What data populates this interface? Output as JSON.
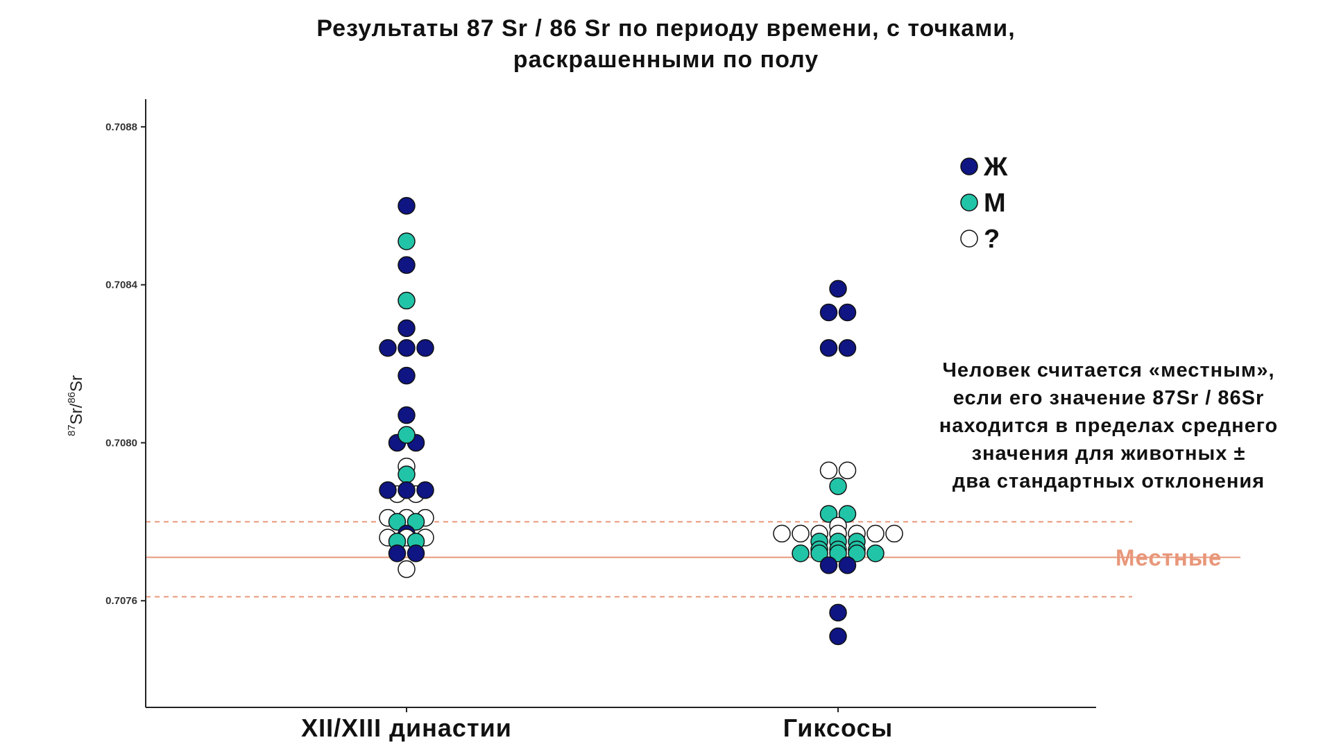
{
  "chart_data": {
    "type": "scatter",
    "title_lines": [
      "Результаты 87 Sr / 86 Sr по периоду времени, с точками,",
      "раскрашенными по полу"
    ],
    "ylabel": {
      "sup1": "87",
      "base1": "Sr/",
      "sup2": "86",
      "base2": "Sr"
    },
    "ylim": [
      0.70733,
      0.70887
    ],
    "yticks": [
      0.7076,
      0.708,
      0.7084,
      0.7088
    ],
    "ytick_labels": [
      "0.7076",
      "0.7080",
      "0.7084",
      "0.7088"
    ],
    "categories": [
      "XII/XIII династии",
      "Гиксосы"
    ],
    "colors": {
      "F": "#0f1582",
      "M": "#22c4a8",
      "U": "#ffffff",
      "local": "#e8977a"
    },
    "legend": [
      {
        "key": "F",
        "label": "Ж"
      },
      {
        "key": "M",
        "label": "М"
      },
      {
        "key": "U",
        "label": "?"
      }
    ],
    "local_range": {
      "mean": 70771,
      "lower": 70761,
      "upper": 70780,
      "scale": 100000,
      "label": "Местные"
    },
    "note_lines": [
      "Человек считается «местным»,",
      "если его значение 87Sr / 86Sr",
      "находится в пределах среднего",
      "значения для животных ±",
      "два стандартных отклонения"
    ],
    "series": [
      {
        "category": "XII/XIII династии",
        "points": [
          {
            "dx": 0,
            "y": 0.7086,
            "sex": "F"
          },
          {
            "dx": 0,
            "y": 0.70851,
            "sex": "M"
          },
          {
            "dx": 0,
            "y": 0.70845,
            "sex": "F"
          },
          {
            "dx": 0,
            "y": 0.70836,
            "sex": "M"
          },
          {
            "dx": 0,
            "y": 0.70829,
            "sex": "F"
          },
          {
            "dx": -1,
            "y": 0.70824,
            "sex": "F"
          },
          {
            "dx": 0,
            "y": 0.70824,
            "sex": "F"
          },
          {
            "dx": 1,
            "y": 0.70824,
            "sex": "F"
          },
          {
            "dx": 0,
            "y": 0.70817,
            "sex": "F"
          },
          {
            "dx": 0,
            "y": 0.70807,
            "sex": "F"
          },
          {
            "dx": -0.5,
            "y": 0.708,
            "sex": "F"
          },
          {
            "dx": 0.5,
            "y": 0.708,
            "sex": "F"
          },
          {
            "dx": 0,
            "y": 0.70802,
            "sex": "M"
          },
          {
            "dx": 0,
            "y": 0.70794,
            "sex": "U"
          },
          {
            "dx": 0,
            "y": 0.70792,
            "sex": "M"
          },
          {
            "dx": -0.5,
            "y": 0.70787,
            "sex": "U"
          },
          {
            "dx": 0.5,
            "y": 0.70787,
            "sex": "U"
          },
          {
            "dx": -1,
            "y": 0.70788,
            "sex": "F"
          },
          {
            "dx": 0,
            "y": 0.70788,
            "sex": "F"
          },
          {
            "dx": 1,
            "y": 0.70788,
            "sex": "F"
          },
          {
            "dx": -1,
            "y": 0.70781,
            "sex": "U"
          },
          {
            "dx": 0,
            "y": 0.70781,
            "sex": "U"
          },
          {
            "dx": 1,
            "y": 0.70781,
            "sex": "U"
          },
          {
            "dx": -0.5,
            "y": 0.7078,
            "sex": "M"
          },
          {
            "dx": 0.5,
            "y": 0.7078,
            "sex": "M"
          },
          {
            "dx": 0,
            "y": 0.70777,
            "sex": "F"
          },
          {
            "dx": -1,
            "y": 0.70776,
            "sex": "U"
          },
          {
            "dx": 0,
            "y": 0.70776,
            "sex": "U"
          },
          {
            "dx": 1,
            "y": 0.70776,
            "sex": "U"
          },
          {
            "dx": -0.5,
            "y": 0.70775,
            "sex": "M"
          },
          {
            "dx": 0.5,
            "y": 0.70775,
            "sex": "M"
          },
          {
            "dx": -0.5,
            "y": 0.70772,
            "sex": "F"
          },
          {
            "dx": 0.5,
            "y": 0.70772,
            "sex": "F"
          },
          {
            "dx": 0,
            "y": 0.70768,
            "sex": "U"
          }
        ]
      },
      {
        "category": "Гиксосы",
        "points": [
          {
            "dx": 0,
            "y": 0.70839,
            "sex": "F"
          },
          {
            "dx": -0.5,
            "y": 0.70833,
            "sex": "F"
          },
          {
            "dx": 0.5,
            "y": 0.70833,
            "sex": "F"
          },
          {
            "dx": -0.5,
            "y": 0.70824,
            "sex": "F"
          },
          {
            "dx": 0.5,
            "y": 0.70824,
            "sex": "F"
          },
          {
            "dx": -0.5,
            "y": 0.70793,
            "sex": "U"
          },
          {
            "dx": 0.5,
            "y": 0.70793,
            "sex": "U"
          },
          {
            "dx": 0,
            "y": 0.70789,
            "sex": "M"
          },
          {
            "dx": -0.5,
            "y": 0.70782,
            "sex": "M"
          },
          {
            "dx": 0.5,
            "y": 0.70782,
            "sex": "M"
          },
          {
            "dx": 0,
            "y": 0.70779,
            "sex": "U"
          },
          {
            "dx": -3,
            "y": 0.70777,
            "sex": "U"
          },
          {
            "dx": -2,
            "y": 0.70777,
            "sex": "U"
          },
          {
            "dx": -1,
            "y": 0.70777,
            "sex": "U"
          },
          {
            "dx": 0,
            "y": 0.70777,
            "sex": "U"
          },
          {
            "dx": 1,
            "y": 0.70777,
            "sex": "U"
          },
          {
            "dx": 2,
            "y": 0.70777,
            "sex": "U"
          },
          {
            "dx": 3,
            "y": 0.70777,
            "sex": "U"
          },
          {
            "dx": -1,
            "y": 0.70775,
            "sex": "M"
          },
          {
            "dx": 0,
            "y": 0.70775,
            "sex": "M"
          },
          {
            "dx": 1,
            "y": 0.70775,
            "sex": "M"
          },
          {
            "dx": -1,
            "y": 0.70773,
            "sex": "M"
          },
          {
            "dx": 0,
            "y": 0.70773,
            "sex": "M"
          },
          {
            "dx": 1,
            "y": 0.70773,
            "sex": "M"
          },
          {
            "dx": -2,
            "y": 0.70772,
            "sex": "M"
          },
          {
            "dx": -1,
            "y": 0.70772,
            "sex": "M"
          },
          {
            "dx": 0,
            "y": 0.70772,
            "sex": "M"
          },
          {
            "dx": 1,
            "y": 0.70772,
            "sex": "M"
          },
          {
            "dx": 2,
            "y": 0.70772,
            "sex": "M"
          },
          {
            "dx": -0.5,
            "y": 0.70769,
            "sex": "F"
          },
          {
            "dx": 0.5,
            "y": 0.70769,
            "sex": "F"
          },
          {
            "dx": 0,
            "y": 0.70757,
            "sex": "F"
          },
          {
            "dx": 0,
            "y": 0.70751,
            "sex": "F"
          }
        ]
      }
    ]
  }
}
